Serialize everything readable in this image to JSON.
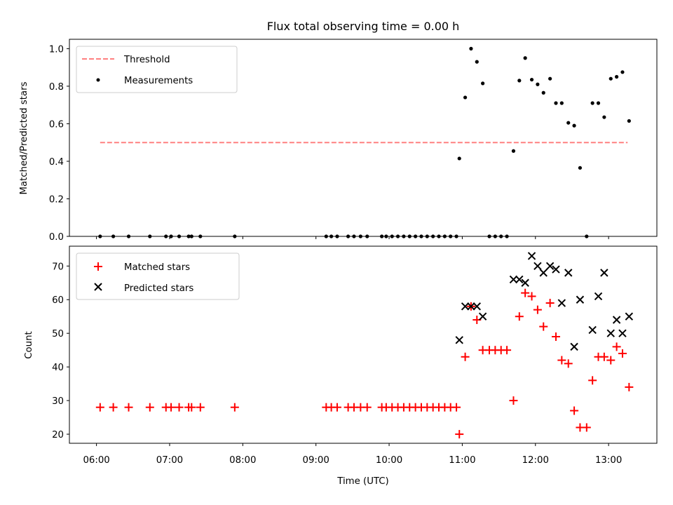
{
  "chart_data": [
    {
      "type": "scatter",
      "title": "Flux total observing time = 0.00 h",
      "ylabel": "Matched/Predicted stars",
      "xlabel": "",
      "x_unit": "hours UTC",
      "xlim": [
        5.63,
        13.66
      ],
      "ylim": [
        0,
        1.05
      ],
      "yticks": [
        0.0,
        0.2,
        0.4,
        0.6,
        0.8,
        1.0
      ],
      "ytick_labels": [
        "0.0",
        "0.2",
        "0.4",
        "0.6",
        "0.8",
        "1.0"
      ],
      "legend_position": "upper-left",
      "legend": [
        {
          "label": "Threshold",
          "style": "dashed-line",
          "color": "#ff8080"
        },
        {
          "label": "Measurements",
          "style": "dot",
          "color": "#000000"
        }
      ],
      "threshold": {
        "value": 0.5,
        "x_range": [
          6.05,
          13.26
        ],
        "color": "#ff8080"
      },
      "series": [
        {
          "name": "Measurements",
          "color": "#000000",
          "points": [
            [
              6.05,
              0
            ],
            [
              6.23,
              0
            ],
            [
              6.44,
              0
            ],
            [
              6.73,
              0
            ],
            [
              6.95,
              0
            ],
            [
              7.02,
              0
            ],
            [
              7.13,
              0
            ],
            [
              7.26,
              0
            ],
            [
              7.3,
              0
            ],
            [
              7.42,
              0
            ],
            [
              7.89,
              0
            ],
            [
              9.14,
              0
            ],
            [
              9.21,
              0
            ],
            [
              9.29,
              0
            ],
            [
              9.44,
              0
            ],
            [
              9.52,
              0
            ],
            [
              9.61,
              0
            ],
            [
              9.7,
              0
            ],
            [
              9.9,
              0
            ],
            [
              9.96,
              0
            ],
            [
              10.04,
              0
            ],
            [
              10.12,
              0
            ],
            [
              10.2,
              0
            ],
            [
              10.28,
              0
            ],
            [
              10.36,
              0
            ],
            [
              10.44,
              0
            ],
            [
              10.52,
              0
            ],
            [
              10.6,
              0
            ],
            [
              10.68,
              0
            ],
            [
              10.76,
              0
            ],
            [
              10.84,
              0
            ],
            [
              10.92,
              0
            ],
            [
              10.96,
              0.415
            ],
            [
              11.04,
              0.74
            ],
            [
              11.12,
              1.0
            ],
            [
              11.2,
              0.93
            ],
            [
              11.28,
              0.815
            ],
            [
              11.37,
              0
            ],
            [
              11.45,
              0
            ],
            [
              11.53,
              0
            ],
            [
              11.61,
              0
            ],
            [
              11.7,
              0.455
            ],
            [
              11.78,
              0.83
            ],
            [
              11.86,
              0.95
            ],
            [
              11.95,
              0.835
            ],
            [
              12.03,
              0.81
            ],
            [
              12.11,
              0.765
            ],
            [
              12.2,
              0.84
            ],
            [
              12.28,
              0.71
            ],
            [
              12.36,
              0.71
            ],
            [
              12.45,
              0.605
            ],
            [
              12.53,
              0.59
            ],
            [
              12.61,
              0.365
            ],
            [
              12.7,
              0
            ],
            [
              12.78,
              0.71
            ],
            [
              12.86,
              0.71
            ],
            [
              12.94,
              0.635
            ],
            [
              13.03,
              0.84
            ],
            [
              13.11,
              0.85
            ],
            [
              13.19,
              0.875
            ],
            [
              13.28,
              0.615
            ]
          ]
        }
      ]
    },
    {
      "type": "scatter",
      "title": "",
      "ylabel": "Count",
      "xlabel": "Time (UTC)",
      "x_unit": "hours UTC",
      "xlim": [
        5.63,
        13.66
      ],
      "ylim": [
        17.3,
        75.9
      ],
      "yticks": [
        20,
        30,
        40,
        50,
        60,
        70
      ],
      "ytick_labels": [
        "20",
        "30",
        "40",
        "50",
        "60",
        "70"
      ],
      "xticks": [
        6,
        7,
        8,
        9,
        10,
        11,
        12,
        13
      ],
      "xtick_labels": [
        "06:00",
        "07:00",
        "08:00",
        "09:00",
        "10:00",
        "11:00",
        "12:00",
        "13:00"
      ],
      "legend_position": "upper-left",
      "legend": [
        {
          "label": "Matched stars",
          "style": "plus",
          "color": "#ff0000"
        },
        {
          "label": "Predicted stars",
          "style": "x",
          "color": "#000000"
        }
      ],
      "series": [
        {
          "name": "Matched stars",
          "marker": "plus",
          "color": "#ff0000",
          "points": [
            [
              6.05,
              28
            ],
            [
              6.23,
              28
            ],
            [
              6.44,
              28
            ],
            [
              6.73,
              28
            ],
            [
              6.95,
              28
            ],
            [
              7.02,
              28
            ],
            [
              7.13,
              28
            ],
            [
              7.26,
              28
            ],
            [
              7.3,
              28
            ],
            [
              7.42,
              28
            ],
            [
              7.89,
              28
            ],
            [
              9.14,
              28
            ],
            [
              9.21,
              28
            ],
            [
              9.29,
              28
            ],
            [
              9.44,
              28
            ],
            [
              9.52,
              28
            ],
            [
              9.61,
              28
            ],
            [
              9.7,
              28
            ],
            [
              9.9,
              28
            ],
            [
              9.96,
              28
            ],
            [
              10.04,
              28
            ],
            [
              10.12,
              28
            ],
            [
              10.2,
              28
            ],
            [
              10.28,
              28
            ],
            [
              10.36,
              28
            ],
            [
              10.44,
              28
            ],
            [
              10.52,
              28
            ],
            [
              10.6,
              28
            ],
            [
              10.68,
              28
            ],
            [
              10.76,
              28
            ],
            [
              10.84,
              28
            ],
            [
              10.92,
              28
            ],
            [
              10.96,
              20
            ],
            [
              11.04,
              43
            ],
            [
              11.12,
              58
            ],
            [
              11.2,
              54
            ],
            [
              11.28,
              45
            ],
            [
              11.37,
              45
            ],
            [
              11.45,
              45
            ],
            [
              11.53,
              45
            ],
            [
              11.61,
              45
            ],
            [
              11.7,
              30
            ],
            [
              11.78,
              55
            ],
            [
              11.86,
              62
            ],
            [
              11.95,
              61
            ],
            [
              12.03,
              57
            ],
            [
              12.11,
              52
            ],
            [
              12.2,
              59
            ],
            [
              12.28,
              49
            ],
            [
              12.36,
              42
            ],
            [
              12.45,
              41
            ],
            [
              12.53,
              27
            ],
            [
              12.61,
              22
            ],
            [
              12.7,
              22
            ],
            [
              12.78,
              36
            ],
            [
              12.86,
              43
            ],
            [
              12.94,
              43
            ],
            [
              13.03,
              42
            ],
            [
              13.11,
              46
            ],
            [
              13.19,
              44
            ],
            [
              13.28,
              34
            ]
          ]
        },
        {
          "name": "Predicted stars",
          "marker": "x",
          "color": "#000000",
          "points": [
            [
              10.96,
              48
            ],
            [
              11.04,
              58
            ],
            [
              11.12,
              58
            ],
            [
              11.2,
              58
            ],
            [
              11.28,
              55
            ],
            [
              11.7,
              66
            ],
            [
              11.78,
              66
            ],
            [
              11.86,
              65
            ],
            [
              11.95,
              73
            ],
            [
              12.03,
              70
            ],
            [
              12.11,
              68
            ],
            [
              12.2,
              70
            ],
            [
              12.28,
              69
            ],
            [
              12.36,
              59
            ],
            [
              12.45,
              68
            ],
            [
              12.53,
              46
            ],
            [
              12.61,
              60
            ],
            [
              12.78,
              51
            ],
            [
              12.86,
              61
            ],
            [
              12.94,
              68
            ],
            [
              13.03,
              50
            ],
            [
              13.11,
              54
            ],
            [
              13.19,
              50
            ],
            [
              13.28,
              55
            ]
          ]
        }
      ]
    }
  ]
}
